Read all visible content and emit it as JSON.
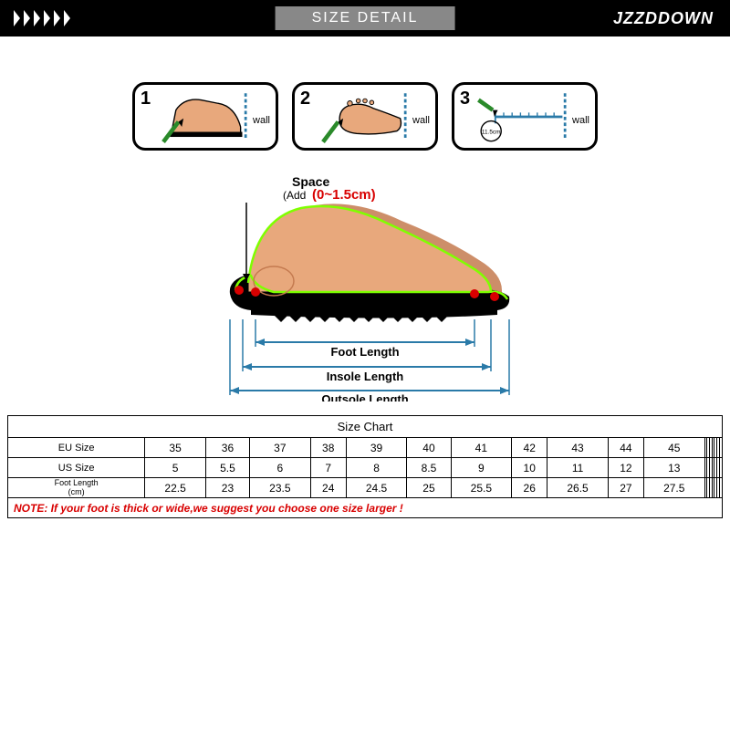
{
  "header": {
    "title": "SIZE DETAIL",
    "brand": "JZZDDOWN",
    "bg_color": "#000000",
    "title_bg": "#888888",
    "text_color": "#ffffff"
  },
  "steps": [
    {
      "num": "1",
      "wall": "wall"
    },
    {
      "num": "2",
      "wall": "wall"
    },
    {
      "num": "3",
      "wall": "wall",
      "measure": "11.5cm"
    }
  ],
  "diagram": {
    "space_label": "Space",
    "add_label": "(Add",
    "range": "0~1.5cm)",
    "foot_length": "Foot Length",
    "insole_length": "Insole Length",
    "outsole_length": "Outsole Length",
    "skin_color": "#e8a87c",
    "shadow_color": "#c47a4f",
    "sole_color": "#000000",
    "outline_color": "#7fff00",
    "dot_color": "#d80000",
    "arrow_color": "#2a7aa8"
  },
  "chart": {
    "caption": "Size Chart",
    "total_cols": 18,
    "rows": [
      {
        "label": "EU Size",
        "values": [
          "35",
          "36",
          "37",
          "38",
          "39",
          "40",
          "41",
          "42",
          "43",
          "44",
          "45"
        ]
      },
      {
        "label": "US Size",
        "values": [
          "5",
          "5.5",
          "6",
          "7",
          "8",
          "8.5",
          "9",
          "10",
          "11",
          "12",
          "13"
        ]
      },
      {
        "label": "Foot Length (cm)",
        "values": [
          "22.5",
          "23",
          "23.5",
          "24",
          "24.5",
          "25",
          "25.5",
          "26",
          "26.5",
          "27",
          "27.5"
        ],
        "small": true
      }
    ],
    "note": "NOTE: If your foot is thick or wide,we suggest you choose one size larger !"
  }
}
